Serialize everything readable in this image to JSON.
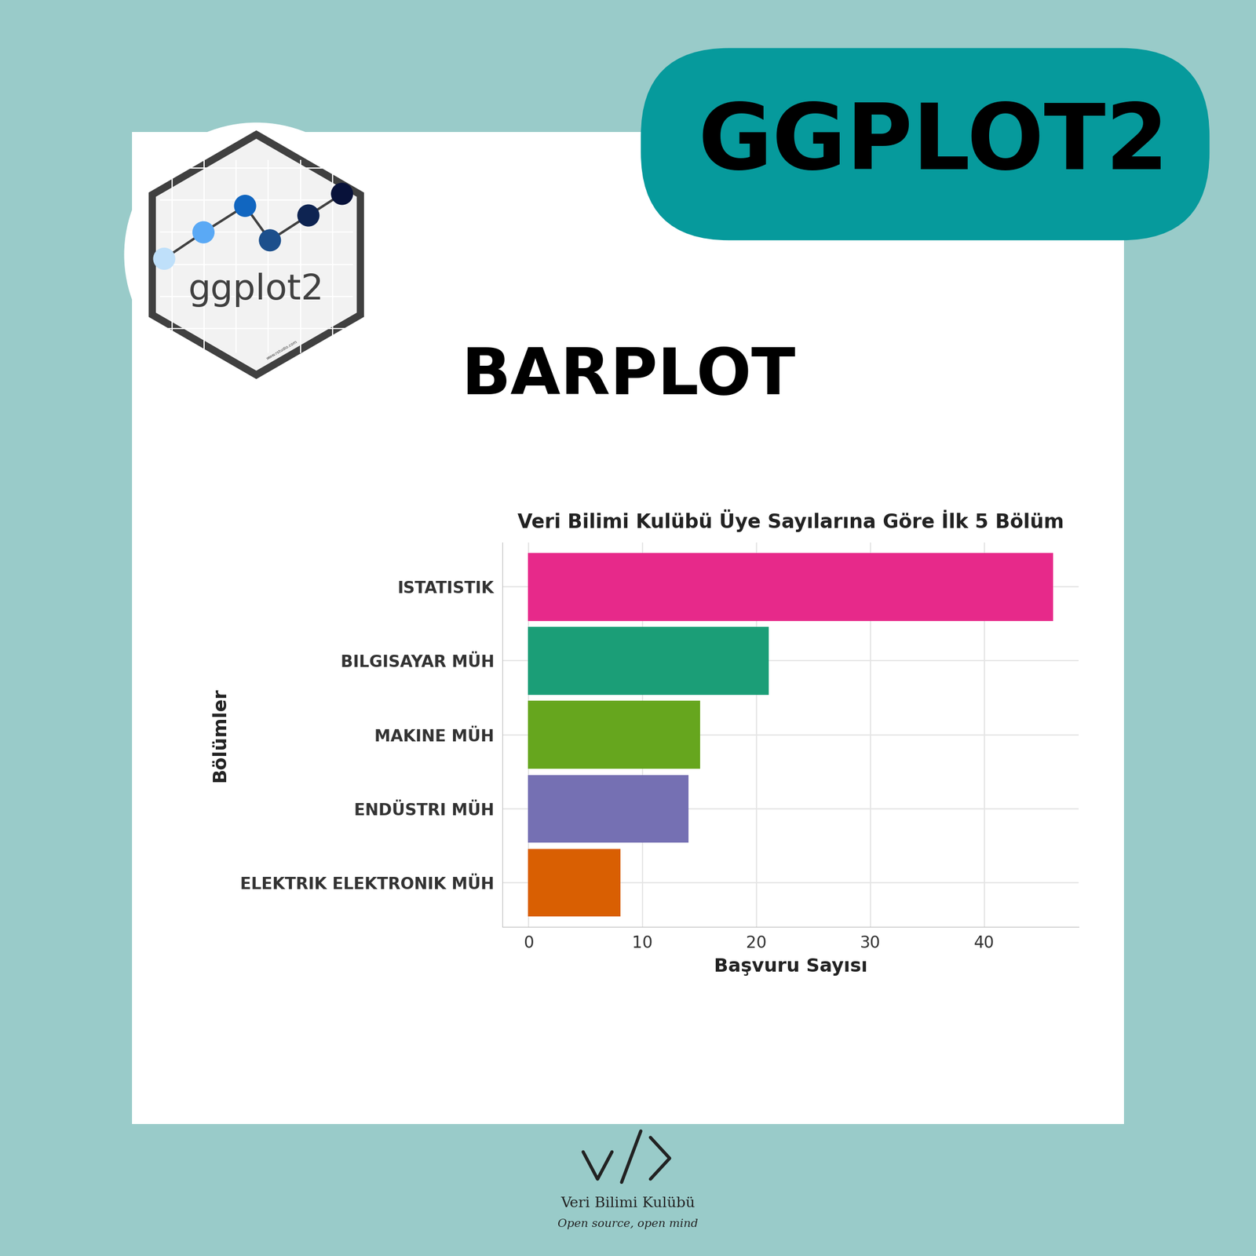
{
  "header": {
    "banner": "GGPLOT2",
    "heading": "BARPLOT",
    "logo_text": "ggplot2",
    "logo_url": "www.rstudio.com"
  },
  "chart_data": {
    "type": "bar",
    "orientation": "horizontal",
    "title": "Veri Bilimi Kulübü Üye Sayılarına Göre İlk 5 Bölüm",
    "x_label": "Başvuru Sayısı",
    "y_label": "Bölümler",
    "categories": [
      "ISTATISTIK",
      "BILGISAYAR MÜH",
      "MAKINE MÜH",
      "ENDÜSTRI MÜH",
      "ELEKTRIK ELEKTRONIK MÜH"
    ],
    "values": [
      46,
      21,
      15,
      14,
      8
    ],
    "colors": [
      "#E7298A",
      "#1B9E77",
      "#66A61E",
      "#7570B3",
      "#D95F02"
    ],
    "xlim": [
      -2.3,
      48.3
    ],
    "xticks": [
      0,
      10,
      20,
      30,
      40
    ],
    "grid": true
  },
  "footer": {
    "name": "Veri Bilimi Kulübü",
    "motto": "Open source, open mind"
  }
}
